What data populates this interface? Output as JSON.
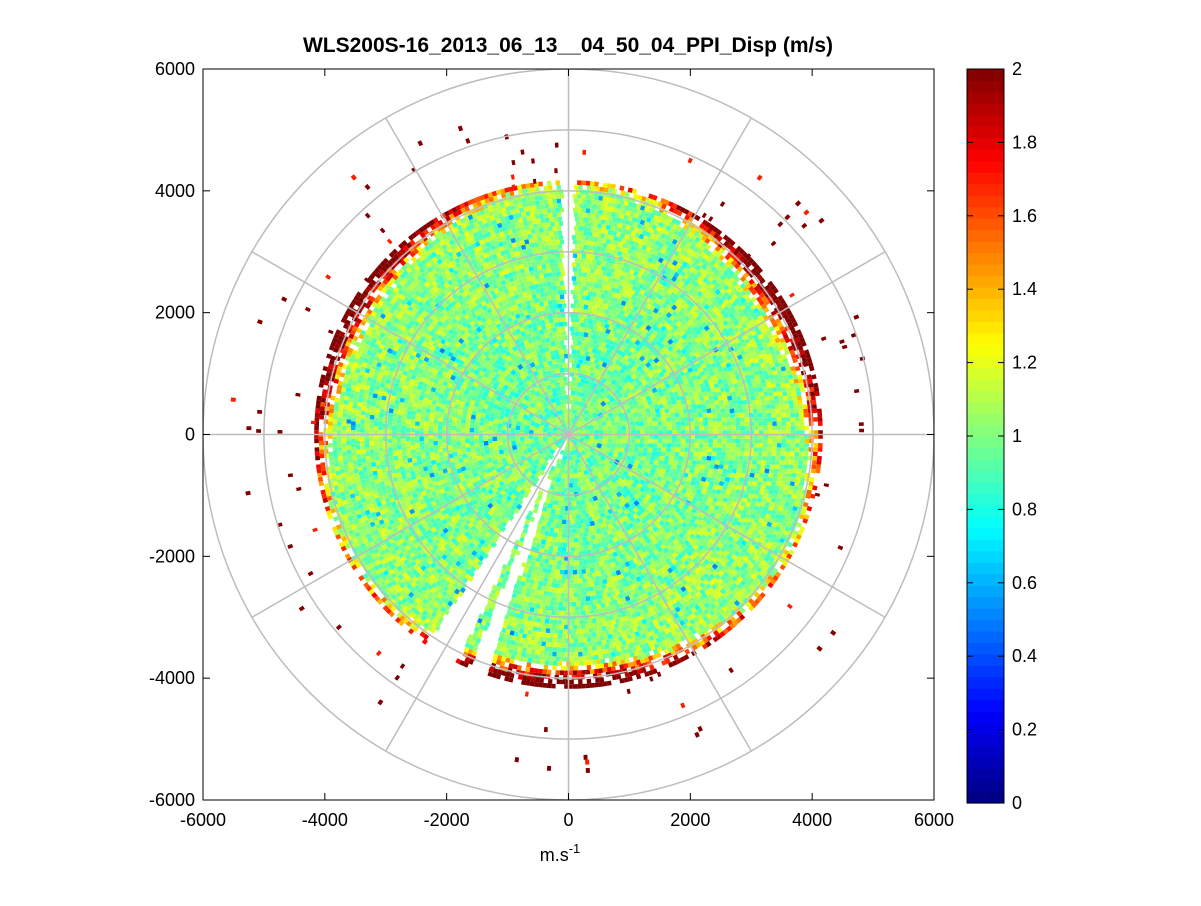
{
  "chart_data": {
    "type": "heatmap",
    "subtype": "polar-ppi",
    "title": "WLS200S-16_2013_06_13__04_50_04_PPI_Disp (m/s)",
    "xlabel_base": "m.s",
    "xlabel_exp": "-1",
    "ylabel": "",
    "xlim": [
      -6000,
      6000
    ],
    "ylim": [
      -6000,
      6000
    ],
    "x_ticks": [
      -6000,
      -4000,
      -2000,
      0,
      2000,
      4000,
      6000
    ],
    "y_ticks": [
      6000,
      4000,
      2000,
      0,
      -2000,
      -4000,
      -6000
    ],
    "x_tick_labels": [
      "-6000",
      "-4000",
      "-2000",
      "0",
      "2000",
      "4000",
      "6000"
    ],
    "y_tick_labels": [
      "6000",
      "4000",
      "2000",
      "0",
      "-2000",
      "-4000",
      "-6000"
    ],
    "polar_grid": {
      "ring_radii": [
        1000,
        2000,
        3000,
        4000,
        5000,
        6000
      ],
      "spoke_angles_deg": [
        0,
        30,
        60,
        90,
        120,
        150,
        180,
        210,
        240,
        270,
        300,
        330
      ]
    },
    "colorbar": {
      "colormap": "jet",
      "range": [
        0,
        2
      ],
      "ticks": [
        0,
        0.2,
        0.4,
        0.6,
        0.8,
        1,
        1.2,
        1.4,
        1.6,
        1.8,
        2
      ],
      "tick_labels": [
        "0",
        "0.2",
        "0.4",
        "0.6",
        "0.8",
        "1",
        "1.2",
        "1.4",
        "1.6",
        "1.8",
        "2"
      ]
    },
    "data_summary": {
      "range_gate_max_m": 4100,
      "typical_inner_value": 0.95,
      "edge_value": 2.0,
      "gap_sectors_deg": [
        [
          88.5,
          91.5
        ],
        [
          236,
          244
        ],
        [
          247,
          251
        ]
      ]
    }
  }
}
